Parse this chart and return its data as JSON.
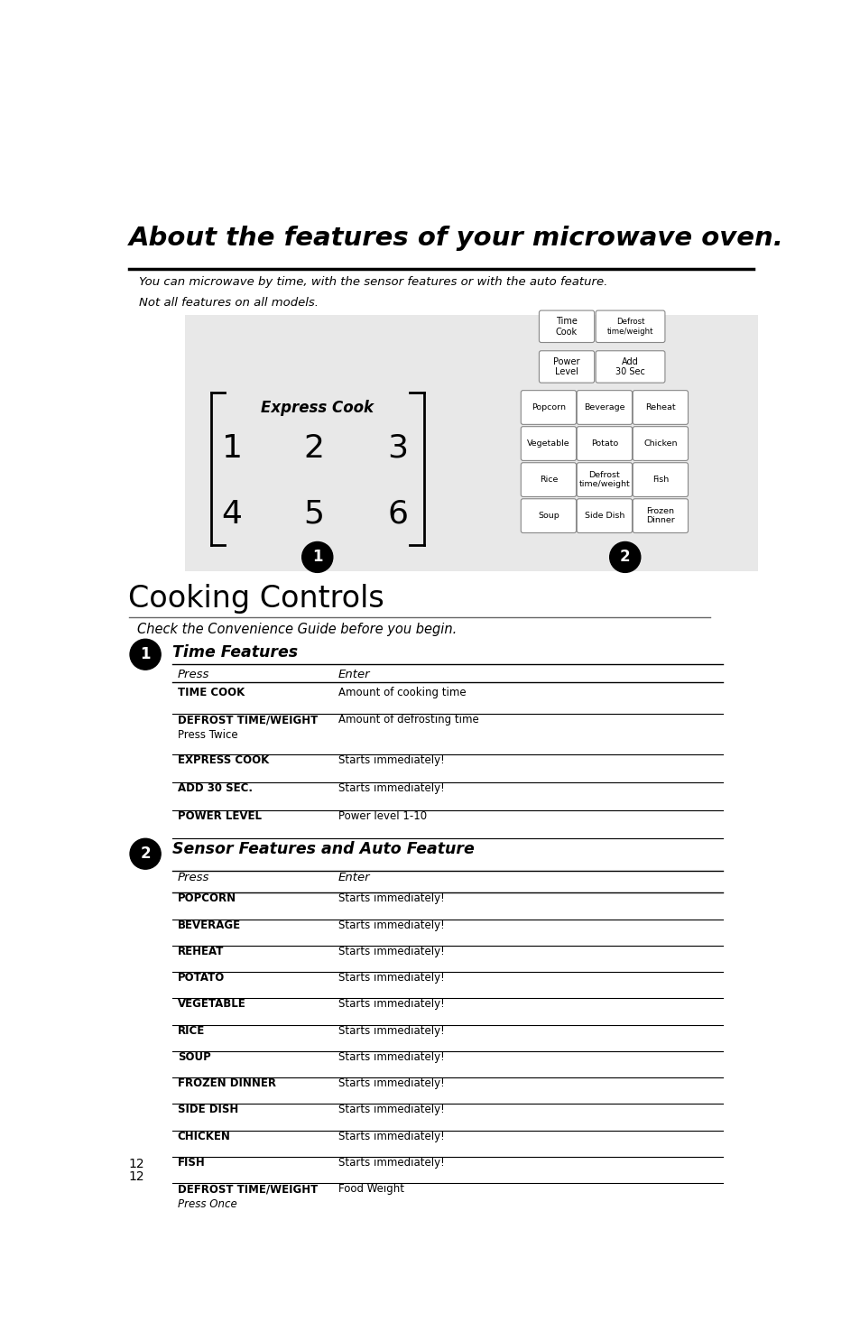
{
  "title": "About the features of your microwave oven.",
  "subtitle1": "You can microwave by time, with the sensor features or with the auto feature.",
  "subtitle2": "Not all features on all models.",
  "section1_title": "Cooking Controls",
  "section1_sub": "Check the Convenience Guide before you begin.",
  "subsection1_title": "Time Features",
  "subsection2_title": "Sensor Features and Auto Feature",
  "col_header_press": "Press",
  "col_header_enter": "Enter",
  "time_features": [
    {
      "press": "TIME COOK",
      "press2": "",
      "enter": "Amount of cooking time"
    },
    {
      "press": "DEFROST TIME/WEIGHT",
      "press2": "Press Twice",
      "enter": "Amount of defrosting time"
    },
    {
      "press": "EXPRESS COOK",
      "press2": "",
      "enter": "Starts immediately!"
    },
    {
      "press": "ADD 30 SEC.",
      "press2": "",
      "enter": "Starts immediately!"
    },
    {
      "press": "POWER LEVEL",
      "press2": "",
      "enter": "Power level 1-10"
    }
  ],
  "sensor_features": [
    {
      "press": "POPCORN",
      "press2": "",
      "enter": "Starts immediately!"
    },
    {
      "press": "BEVERAGE",
      "press2": "",
      "enter": "Starts immediately!"
    },
    {
      "press": "REHEAT",
      "press2": "",
      "enter": "Starts immediately!"
    },
    {
      "press": "POTATO",
      "press2": "",
      "enter": "Starts immediately!"
    },
    {
      "press": "VEGETABLE",
      "press2": "",
      "enter": "Starts immediately!"
    },
    {
      "press": "RICE",
      "press2": "",
      "enter": "Starts immediately!"
    },
    {
      "press": "SOUP",
      "press2": "",
      "enter": "Starts immediately!"
    },
    {
      "press": "FROZEN DINNER",
      "press2": "",
      "enter": "Starts immediately!"
    },
    {
      "press": "SIDE DISH",
      "press2": "",
      "enter": "Starts immediately!"
    },
    {
      "press": "CHICKEN",
      "press2": "",
      "enter": "Starts immediately!"
    },
    {
      "press": "FISH",
      "press2": "",
      "enter": "Starts immediately!"
    },
    {
      "press": "DEFROST TIME/WEIGHT",
      "press2": "Press Once",
      "enter": "Food Weight"
    }
  ],
  "page_number": "12",
  "express_cook_label": "Express Cook",
  "express_cook_nums": [
    "1",
    "2",
    "3",
    "4",
    "5",
    "6"
  ],
  "bg_color": "#e8e8e8",
  "white": "#ffffff",
  "black": "#000000"
}
